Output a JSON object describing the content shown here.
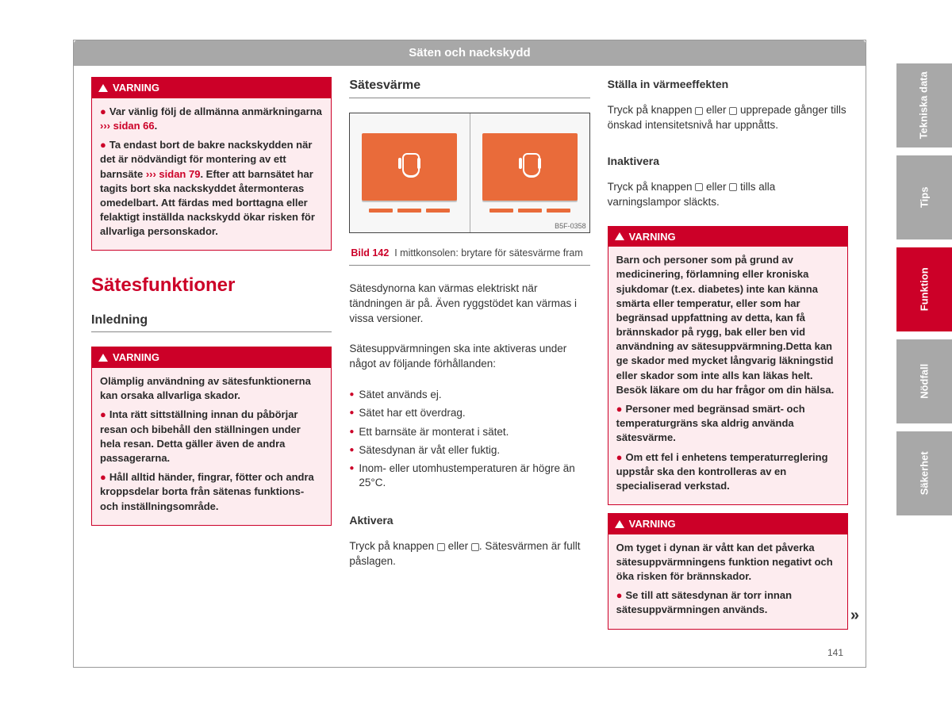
{
  "header": "Säten och nackskydd",
  "warn_label": "VARNING",
  "col1": {
    "warn1": {
      "line1_pre": "Var vänlig följ de allmänna anmärkningarna ",
      "line1_link_sym": "›››",
      "line1_link": " sidan 66",
      "line1_post": ".",
      "line2_a": "Ta endast bort de bakre nackskydden när det är nödvändigt för montering av ett barnsäte ",
      "line2_link_sym": "›››",
      "line2_link": " sidan 79",
      "line2_b": ". Efter att barnsätet har tagits bort ska nackskyddet återmonteras omedelbart. Att färdas med borttagna eller felaktigt inställda nackskydd ökar risken för allvarliga personskador."
    },
    "section_title": "Sätesfunktioner",
    "sub_title": "Inledning",
    "warn2": {
      "p1": "Olämplig användning av sätesfunktionerna kan orsaka allvarliga skador.",
      "p2": "Inta rätt sittställning innan du påbörjar resan och bibehåll den ställningen under hela resan. Detta gäller även de andra passagerarna.",
      "p3": "Håll alltid händer, fingrar, fötter och andra kroppsdelar borta från sätenas funktions- och inställningsområde."
    }
  },
  "col2": {
    "heading": "Sätesvärme",
    "fig_code": "B5F-0358",
    "fig_num": "Bild 142",
    "fig_cap": "I mittkonsolen: brytare för sätesvärme fram",
    "p1": "Sätesdynorna kan värmas elektriskt när tändningen är på. Även ryggstödet kan värmas i vissa versioner.",
    "p2": "Sätesuppvärmningen ska inte aktiveras under något av följande förhållanden:",
    "items": [
      "Sätet används ej.",
      "Sätet har ett överdrag.",
      "Ett barnsäte är monterat i sätet.",
      "Sätesdynan är våt eller fuktig.",
      "Inom- eller utomhustemperaturen är högre än 25°C."
    ],
    "h_activate": "Aktivera",
    "p_activate_a": "Tryck på knappen ",
    "p_activate_mid": " eller ",
    "p_activate_b": ". Sätesvärmen är fullt påslagen."
  },
  "col3": {
    "h_set": "Ställa in värmeeffekten",
    "p_set_a": "Tryck på knappen ",
    "p_set_mid": " eller ",
    "p_set_b": " upprepade gånger tills önskad intensitetsnivå har uppnåtts.",
    "h_inact": "Inaktivera",
    "p_inact_a": "Tryck på knappen ",
    "p_inact_mid": " eller ",
    "p_inact_b": " tills alla varningslampor släckts.",
    "warn1": {
      "p1": "Barn och personer som på grund av medicinering, förlamning eller kroniska sjukdomar (t.ex. diabetes) inte kan känna smärta eller temperatur, eller som har begränsad uppfattning av detta, kan få brännskador på rygg, bak eller ben vid användning av sätesuppvärmning.Detta kan ge skador med mycket långvarig läkningstid eller skador som inte alls kan läkas helt. Besök läkare om du har frågor om din hälsa.",
      "p2": "Personer med begränsad smärt- och temperaturgräns ska aldrig använda sätesvärme.",
      "p3": "Om ett fel i enhetens temperaturreglering uppstår ska den kontrolleras av en specialiserad verkstad."
    },
    "warn2": {
      "p1": "Om tyget i dynan är vått kan det påverka sätesuppvärmningens funktion negativt och öka risken för brännskador.",
      "p2": "Se till att sätesdynan är torr innan sätesuppvärmningen används."
    }
  },
  "tabs": [
    "Tekniska data",
    "Tips",
    "Funktion",
    "Nödfall",
    "Säkerhet"
  ],
  "active_tab": 2,
  "page_number": "141",
  "continue_sym": "»"
}
